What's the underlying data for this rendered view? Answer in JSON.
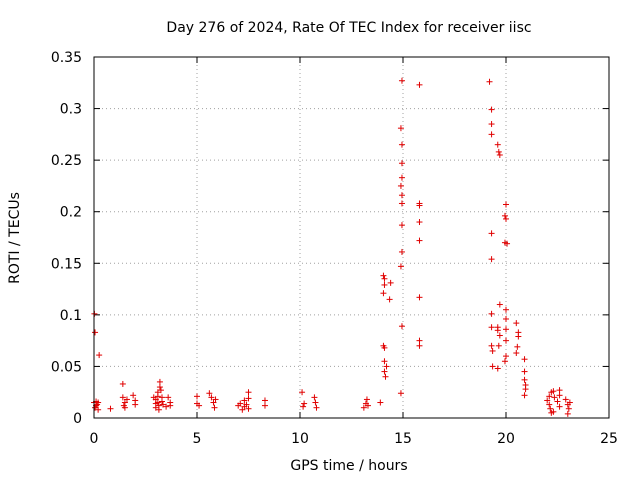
{
  "chart_data": {
    "type": "scatter",
    "title": "Day 276 of 2024, Rate Of TEC Index for receiver iisc",
    "xlabel": "GPS time / hours",
    "ylabel": "ROTI / TECUs",
    "xlim": [
      0,
      25
    ],
    "ylim": [
      0,
      0.35
    ],
    "xticks": [
      0,
      5,
      10,
      15,
      20,
      25
    ],
    "xtick_labels": [
      "0",
      "5",
      "10",
      "15",
      "20",
      "25"
    ],
    "yticks": [
      0,
      0.05,
      0.1,
      0.15,
      0.2,
      0.25,
      0.3,
      0.35
    ],
    "ytick_labels": [
      "0",
      "0.05",
      "0.1",
      "0.15",
      "0.2",
      "0.25",
      "0.3",
      "0.35"
    ],
    "grid": true,
    "marker": "+",
    "color": "#e00000",
    "series": [
      {
        "name": "ROTI",
        "points": [
          [
            0.02,
            0.101
          ],
          [
            0.05,
            0.083
          ],
          [
            0.0,
            0.015
          ],
          [
            0.05,
            0.01
          ],
          [
            0.1,
            0.012
          ],
          [
            0.1,
            0.016
          ],
          [
            0.15,
            0.013
          ],
          [
            0.2,
            0.008
          ],
          [
            0.2,
            0.015
          ],
          [
            0.25,
            0.061
          ],
          [
            0.8,
            0.009
          ],
          [
            1.4,
            0.033
          ],
          [
            1.4,
            0.02
          ],
          [
            1.5,
            0.015
          ],
          [
            1.5,
            0.01
          ],
          [
            1.45,
            0.012
          ],
          [
            1.6,
            0.018
          ],
          [
            1.9,
            0.022
          ],
          [
            2.0,
            0.017
          ],
          [
            2.0,
            0.013
          ],
          [
            2.9,
            0.02
          ],
          [
            3.0,
            0.018
          ],
          [
            3.0,
            0.014
          ],
          [
            3.0,
            0.01
          ],
          [
            3.1,
            0.025
          ],
          [
            3.1,
            0.021
          ],
          [
            3.1,
            0.015
          ],
          [
            3.15,
            0.012
          ],
          [
            3.15,
            0.008
          ],
          [
            3.2,
            0.035
          ],
          [
            3.2,
            0.03
          ],
          [
            3.25,
            0.027
          ],
          [
            3.3,
            0.02
          ],
          [
            3.3,
            0.016
          ],
          [
            3.35,
            0.013
          ],
          [
            3.5,
            0.011
          ],
          [
            3.6,
            0.02
          ],
          [
            3.7,
            0.015
          ],
          [
            3.7,
            0.012
          ],
          [
            5.0,
            0.021
          ],
          [
            5.0,
            0.014
          ],
          [
            5.1,
            0.012
          ],
          [
            5.6,
            0.024
          ],
          [
            5.7,
            0.02
          ],
          [
            5.8,
            0.015
          ],
          [
            5.9,
            0.018
          ],
          [
            5.85,
            0.01
          ],
          [
            7.0,
            0.012
          ],
          [
            7.1,
            0.014
          ],
          [
            7.2,
            0.008
          ],
          [
            7.3,
            0.017
          ],
          [
            7.3,
            0.011
          ],
          [
            7.4,
            0.013
          ],
          [
            7.5,
            0.025
          ],
          [
            7.5,
            0.019
          ],
          [
            7.5,
            0.009
          ],
          [
            8.3,
            0.017
          ],
          [
            8.3,
            0.012
          ],
          [
            10.1,
            0.025
          ],
          [
            10.2,
            0.014
          ],
          [
            10.15,
            0.011
          ],
          [
            10.7,
            0.02
          ],
          [
            10.75,
            0.015
          ],
          [
            10.8,
            0.01
          ],
          [
            13.1,
            0.01
          ],
          [
            13.2,
            0.014
          ],
          [
            13.25,
            0.018
          ],
          [
            13.3,
            0.012
          ],
          [
            13.9,
            0.015
          ],
          [
            14.05,
            0.138
          ],
          [
            14.1,
            0.135
          ],
          [
            14.1,
            0.129
          ],
          [
            14.05,
            0.121
          ],
          [
            14.4,
            0.131
          ],
          [
            14.35,
            0.115
          ],
          [
            14.05,
            0.07
          ],
          [
            14.1,
            0.068
          ],
          [
            14.1,
            0.055
          ],
          [
            14.1,
            0.045
          ],
          [
            14.15,
            0.04
          ],
          [
            14.2,
            0.05
          ],
          [
            14.95,
            0.327
          ],
          [
            14.9,
            0.281
          ],
          [
            14.95,
            0.265
          ],
          [
            14.95,
            0.247
          ],
          [
            14.95,
            0.233
          ],
          [
            14.9,
            0.225
          ],
          [
            14.95,
            0.216
          ],
          [
            14.95,
            0.208
          ],
          [
            14.95,
            0.187
          ],
          [
            14.95,
            0.161
          ],
          [
            14.9,
            0.147
          ],
          [
            14.95,
            0.089
          ],
          [
            14.9,
            0.024
          ],
          [
            15.8,
            0.323
          ],
          [
            15.8,
            0.208
          ],
          [
            15.8,
            0.206
          ],
          [
            15.8,
            0.19
          ],
          [
            15.8,
            0.172
          ],
          [
            15.8,
            0.117
          ],
          [
            15.8,
            0.075
          ],
          [
            15.8,
            0.07
          ],
          [
            19.2,
            0.326
          ],
          [
            19.3,
            0.299
          ],
          [
            19.3,
            0.285
          ],
          [
            19.3,
            0.275
          ],
          [
            19.6,
            0.265
          ],
          [
            19.65,
            0.258
          ],
          [
            19.7,
            0.255
          ],
          [
            19.3,
            0.179
          ],
          [
            19.3,
            0.154
          ],
          [
            19.3,
            0.101
          ],
          [
            19.3,
            0.088
          ],
          [
            19.3,
            0.07
          ],
          [
            19.35,
            0.065
          ],
          [
            19.35,
            0.05
          ],
          [
            19.7,
            0.11
          ],
          [
            19.6,
            0.088
          ],
          [
            19.6,
            0.085
          ],
          [
            19.7,
            0.08
          ],
          [
            19.65,
            0.07
          ],
          [
            19.6,
            0.048
          ],
          [
            20.0,
            0.207
          ],
          [
            19.95,
            0.196
          ],
          [
            20.0,
            0.193
          ],
          [
            19.95,
            0.17
          ],
          [
            20.05,
            0.169
          ],
          [
            20.0,
            0.105
          ],
          [
            20.0,
            0.096
          ],
          [
            20.0,
            0.086
          ],
          [
            20.0,
            0.075
          ],
          [
            20.0,
            0.06
          ],
          [
            19.95,
            0.055
          ],
          [
            20.5,
            0.092
          ],
          [
            20.6,
            0.083
          ],
          [
            20.6,
            0.079
          ],
          [
            20.55,
            0.069
          ],
          [
            20.5,
            0.063
          ],
          [
            20.9,
            0.057
          ],
          [
            20.9,
            0.045
          ],
          [
            20.9,
            0.037
          ],
          [
            20.95,
            0.032
          ],
          [
            20.95,
            0.028
          ],
          [
            20.9,
            0.022
          ],
          [
            22.0,
            0.017
          ],
          [
            22.1,
            0.021
          ],
          [
            22.1,
            0.013
          ],
          [
            22.15,
            0.009
          ],
          [
            22.2,
            0.025
          ],
          [
            22.2,
            0.005
          ],
          [
            22.3,
            0.006
          ],
          [
            22.3,
            0.026
          ],
          [
            22.35,
            0.02
          ],
          [
            22.5,
            0.016
          ],
          [
            22.6,
            0.027
          ],
          [
            22.6,
            0.022
          ],
          [
            22.6,
            0.011
          ],
          [
            22.9,
            0.018
          ],
          [
            23.0,
            0.013
          ],
          [
            23.05,
            0.009
          ],
          [
            23.1,
            0.015
          ],
          [
            23.0,
            0.004
          ]
        ]
      }
    ]
  }
}
